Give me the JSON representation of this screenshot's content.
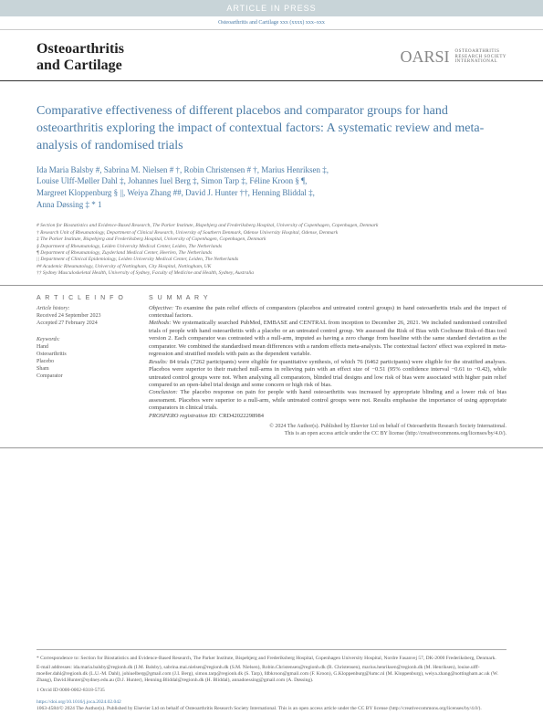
{
  "banner": "ARTICLE IN PRESS",
  "citation": "Osteoarthritis and Cartilage xxx (xxxx) xxx–xxx",
  "journal": {
    "line1": "Osteoarthritis",
    "line2": "and Cartilage"
  },
  "society": {
    "mark": "OARSI",
    "line1": "OSTEOARTHRITIS",
    "line2": "RESEARCH SOCIETY",
    "line3": "INTERNATIONAL"
  },
  "title": "Comparative effectiveness of different placebos and comparator groups for hand osteoarthritis exploring the impact of contextual factors: A systematic review and meta-analysis of randomised trials",
  "authors_line1": "Ida Maria Balsby #, Sabrina M. Nielsen # †, Robin Christensen # †, Marius Henriksen ‡,",
  "authors_line2": "Louise Ulff-Møller Dahl ‡, Johannes Iuel Berg ‡, Simon Tarp ‡, Féline Kroon § ¶,",
  "authors_line3": "Margreet Kloppenburg § ||, Weiya Zhang ##, David J. Hunter ††, Henning Bliddal ‡,",
  "authors_line4": "Anna Døssing ‡ * 1",
  "affiliations": [
    "# Section for Biostatistics and Evidence-Based Research, The Parker Institute, Bispebjerg and Frederiksberg Hospital, University of Copenhagen, Copenhagen, Denmark",
    "† Research Unit of Rheumatology, Department of Clinical Research, University of Southern Denmark, Odense University Hospital, Odense, Denmark",
    "‡ The Parker Institute, Bispebjerg and Frederiksberg Hospital, University of Copenhagen, Copenhagen, Denmark",
    "§ Department of Rheumatology, Leiden University Medical Center, Leiden, The Netherlands",
    "¶ Department of Rheumatology, Zuyderland Medical Center, Heerlen, The Netherlands",
    "|| Department of Clinical Epidemiology, Leiden University Medical Center, Leiden, The Netherlands",
    "## Academic Rheumatology, University of Nottingham, City Hospital, Nottingham, UK",
    "†† Sydney Musculoskeletal Health, University of Sydney, Faculty of Medicine and Health, Sydney, Australia"
  ],
  "article_info": {
    "head": "A R T I C L E   I N F O",
    "history_label": "Article history:",
    "received": "Received 24 September 2023",
    "accepted": "Accepted 27 February 2024",
    "keywords_label": "Keywords:",
    "keywords": [
      "Hand",
      "Osteoarthritis",
      "Placebo",
      "Sham",
      "Comparator"
    ]
  },
  "summary": {
    "head": "S U M M A R Y",
    "objective_label": "Objective:",
    "objective": " To examine the pain relief effects of comparators (placebos and untreated control groups) in hand osteoarthritis trials and the impact of contextual factors.",
    "methods_label": "Methods:",
    "methods": " We systematically searched PubMed, EMBASE and CENTRAL from inception to December 26, 2021. We included randomised controlled trials of people with hand osteoarthritis with a placebo or an untreated control group. We assessed the Risk of Bias with Cochrane Risk-of-Bias tool version 2. Each comparator was contrasted with a null-arm, imputed as having a zero change from baseline with the same standard deviation as the comparator. We combined the standardised mean differences with a random effects meta-analysis. The contextual factors' effect was explored in meta-regression and stratified models with pain as the dependent variable.",
    "results_label": "Results:",
    "results": " 84 trials (7262 participants) were eligible for quantitative synthesis, of which 76 (6462 participants) were eligible for the stratified analyses. Placebos were superior to their matched null-arms in relieving pain with an effect size of −0.51 (95% confidence interval −0.61 to −0.42), while untreated control groups were not. When analysing all comparators, blinded trial designs and low risk of bias were associated with higher pain relief compared to an open-label trial design and some concern or high risk of bias.",
    "conclusion_label": "Conclusion:",
    "conclusion": " The placebo response on pain for people with hand osteoarthritis was increased by appropriate blinding and a lower risk of bias assessment. Placebos were superior to a null-arm, while untreated control groups were not. Results emphasise the importance of using appropriate comparators in clinical trials.",
    "prospero_label": "PROSPERO registration ID:",
    "prospero": " CRD42022298984",
    "copyright": "© 2024 The Author(s). Published by Elsevier Ltd on behalf of Osteoarthritis Research Society International.",
    "license": "This is an open access article under the CC BY license (http://creativecommons.org/licenses/by/4.0/)."
  },
  "footer": {
    "correspondence": "* Correspondence to: Section for Biostatistics and Evidence-Based Research, The Parker Institute, Bispebjerg and Frederiksberg Hospital, Copenhagen University Hospital, Nordre Fasanvej 57, DK-2000 Frederiksberg, Denmark.",
    "emails": "E-mail addresses: ida.maria.balsby@regionh.dk (I.M. Balsby), sabrina.mai.nielsen@regionh.dk (S.M. Nielsen), Robin.Christensen@regionh.dk (R. Christensen), marius.henriksen@regionh.dk (M. Henriksen), louise.ulff-moeller.dahl@regionh.dk (L.U.-M. Dahl), johiuelberg@gmail.com (J.I. Berg), simon.tarp@regionh.dk (S. Tarp), fdbkroon@gmail.com (F. Kroon), G.Kloppenburg@lumc.nl (M. Kloppenburg), weiya.zhang@nottingham.ac.uk (W. Zhang), David.Hunter@sydney.edu.au (D.J. Hunter), Henning.Bliddal@regionh.dk (H. Bliddal), annadoessing@gmail.com (A. Døssing).",
    "orcid": "1 Orcid ID 0000-0002-8318-5735",
    "doi": "https://doi.org/10.1016/j.joca.2024.02.042",
    "issn": "1063-4584/© 2024 The Author(s). Published by Elsevier Ltd on behalf of Osteoarthritis Research Society International. This is an open access article under the CC BY license (http://creativecommons.org/licenses/by/4.0/)."
  }
}
